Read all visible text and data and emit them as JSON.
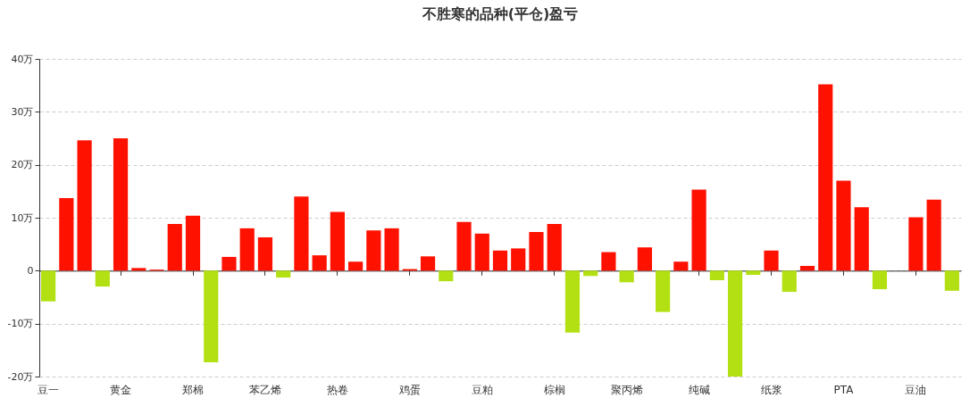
{
  "chart_data": {
    "type": "bar",
    "title": "不胜寒的品种(平仓)盈亏",
    "categories": [
      "豆一",
      null,
      null,
      null,
      "黄金",
      null,
      null,
      null,
      "郑棉",
      null,
      null,
      null,
      "苯乙烯",
      null,
      null,
      null,
      "热卷",
      null,
      null,
      null,
      "鸡蛋",
      null,
      null,
      null,
      "豆粕",
      null,
      null,
      null,
      "棕榈",
      null,
      null,
      null,
      "聚丙烯",
      null,
      null,
      null,
      "纯碱",
      null,
      null,
      null,
      "纸浆",
      null,
      null,
      null,
      "PTA",
      null,
      null,
      null,
      "豆油",
      null,
      null
    ],
    "values": [
      -5.8,
      13.7,
      24.6,
      -3.0,
      25.0,
      0.5,
      0.2,
      8.8,
      10.4,
      -17.3,
      2.6,
      8.0,
      6.3,
      -1.3,
      14.0,
      2.9,
      11.1,
      1.7,
      7.6,
      8.0,
      0.3,
      2.7,
      -2.0,
      9.2,
      7.0,
      3.8,
      4.2,
      7.3,
      8.8,
      -11.7,
      -1.0,
      3.5,
      -2.2,
      4.4,
      -7.8,
      1.7,
      15.3,
      -1.8,
      -20.0,
      -0.8,
      3.8,
      -4.0,
      0.9,
      35.2,
      17.0,
      12.0,
      -3.5,
      0,
      10.1,
      13.4,
      -3.8
    ],
    "colors": [
      "#b3e012",
      "#ff1100",
      "#ff1100",
      "#b3e012",
      "#ff1100",
      "#ff1100",
      "#ff1100",
      "#ff1100",
      "#ff1100",
      "#b3e012",
      "#ff1100",
      "#ff1100",
      "#ff1100",
      "#b3e012",
      "#ff1100",
      "#ff1100",
      "#ff1100",
      "#ff1100",
      "#ff1100",
      "#ff1100",
      "#ff1100",
      "#ff1100",
      "#b3e012",
      "#ff1100",
      "#ff1100",
      "#ff1100",
      "#ff1100",
      "#ff1100",
      "#ff1100",
      "#b3e012",
      "#b3e012",
      "#ff1100",
      "#b3e012",
      "#ff1100",
      "#b3e012",
      "#ff1100",
      "#ff1100",
      "#b3e012",
      "#b3e012",
      "#b3e012",
      "#ff1100",
      "#b3e012",
      "#ff1100",
      "#ff1100",
      "#ff1100",
      "#ff1100",
      "#b3e012",
      "#ff1100",
      "#ff1100",
      "#ff1100",
      "#b3e012"
    ],
    "ylim": [
      -20,
      40
    ],
    "yticks": [
      {
        "value": -20,
        "label": "-20万"
      },
      {
        "value": -10,
        "label": "-10万"
      },
      {
        "value": 0,
        "label": "0"
      },
      {
        "value": 10,
        "label": "10万"
      },
      {
        "value": 20,
        "label": "20万"
      },
      {
        "value": 30,
        "label": "30万"
      },
      {
        "value": 40,
        "label": "40万"
      }
    ],
    "grid": "y"
  }
}
